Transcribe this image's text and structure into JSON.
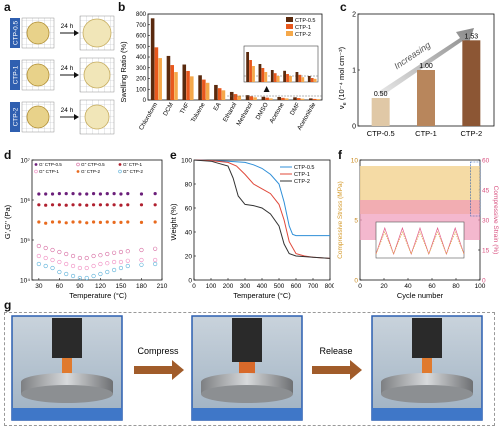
{
  "panel_labels": {
    "a": "a",
    "b": "b",
    "c": "c",
    "d": "d",
    "e": "e",
    "f": "f",
    "g": "g"
  },
  "colors": {
    "ctp05": "#5a2a0e",
    "ctp1": "#e8581d",
    "ctp2": "#f5a84a",
    "blue": "#2f6fc1",
    "pink": "#e25b8a",
    "gold": "#e0a640"
  },
  "panel_a": {
    "labels": [
      "CTP-0.5",
      "CTP-1",
      "CTP-2"
    ],
    "arrow_text": "24 h"
  },
  "panel_g": {
    "steps": [
      "Compress",
      "Release"
    ]
  },
  "chart_data": [
    {
      "id": "b",
      "type": "bar",
      "ylabel": "Swelling Ratio (%)",
      "ylim": [
        0,
        800
      ],
      "yticks": [
        0,
        100,
        200,
        300,
        400,
        500,
        600,
        700,
        800
      ],
      "categories": [
        "Chloroform",
        "DCM",
        "THF",
        "Toluene",
        "EA",
        "Ethanol",
        "Methanol",
        "DMSO",
        "Acetone",
        "DMF",
        "Acetonitrile"
      ],
      "series": [
        {
          "name": "CTP-0.5",
          "values": [
            760,
            410,
            330,
            230,
            140,
            75,
            45,
            30,
            28,
            25,
            15
          ]
        },
        {
          "name": "CTP-1",
          "values": [
            490,
            325,
            270,
            190,
            110,
            55,
            35,
            22,
            20,
            18,
            10
          ]
        },
        {
          "name": "CTP-2",
          "values": [
            390,
            260,
            220,
            160,
            90,
            40,
            25,
            15,
            15,
            12,
            8
          ]
        }
      ],
      "legend": "top-right",
      "inset": "zoom of Ethanol–Acetonitrile"
    },
    {
      "id": "c",
      "type": "bar",
      "ylabel": "ν",
      "ylabel_sub": "e",
      "ylabel_unit": "(10⁻⁴ mol cm⁻³)",
      "ylim": [
        0,
        2.0
      ],
      "yticks": [
        0,
        1,
        2
      ],
      "categories": [
        "CTP-0.5",
        "CTP-1",
        "CTP-2"
      ],
      "values": [
        0.5,
        1.0,
        1.53
      ],
      "labels": [
        "0.50",
        "1.00",
        "1.53"
      ],
      "annotation": "Increasing"
    },
    {
      "id": "d",
      "type": "scatter",
      "xlabel": "Temperature (°C)",
      "ylabel": "G',G'' (Pa)",
      "ylog": true,
      "ylim": [
        10000,
        10000000
      ],
      "yticks_labels": [
        "10⁴",
        "10⁵",
        "10⁶",
        "10⁷"
      ],
      "xlim": [
        20,
        210
      ],
      "xticks": [
        30,
        60,
        90,
        120,
        150,
        180,
        210
      ],
      "series": [
        {
          "name": "G' CTP-0.5",
          "marker": "filled",
          "values_log": [
            6.15,
            6.15,
            6.15,
            6.16,
            6.16,
            6.16,
            6.15,
            6.15,
            6.16,
            6.15,
            6.16,
            6.16,
            6.15,
            6.16,
            6.15,
            6.16
          ]
        },
        {
          "name": "G'' CTP-0.5",
          "marker": "open",
          "values_log": [
            4.85,
            4.8,
            4.75,
            4.7,
            4.65,
            4.6,
            4.55,
            4.55,
            4.6,
            4.62,
            4.65,
            4.68,
            4.7,
            4.72,
            4.75,
            4.78
          ]
        },
        {
          "name": "G' CTP-1",
          "marker": "filled",
          "values_log": [
            5.88,
            5.87,
            5.88,
            5.88,
            5.87,
            5.88,
            5.88,
            5.87,
            5.88,
            5.88,
            5.88,
            5.88,
            5.87,
            5.88,
            5.88,
            5.88
          ]
        },
        {
          "name": "G'' CTP-1",
          "marker": "open",
          "values_log": [
            4.6,
            4.55,
            4.5,
            4.45,
            4.4,
            4.35,
            4.3,
            4.3,
            4.35,
            4.4,
            4.42,
            4.45,
            4.45,
            4.48,
            4.5,
            4.5
          ]
        },
        {
          "name": "G' CTP-2",
          "marker": "filled",
          "values_log": [
            5.45,
            5.42,
            5.45,
            5.45,
            5.43,
            5.45,
            5.45,
            5.43,
            5.45,
            5.44,
            5.45,
            5.44,
            5.44,
            5.45,
            5.44,
            5.45
          ]
        },
        {
          "name": "G'' CTP-2",
          "marker": "open",
          "values_log": [
            4.4,
            4.35,
            4.3,
            4.2,
            4.15,
            4.1,
            4.05,
            4.05,
            4.1,
            4.15,
            4.2,
            4.25,
            4.3,
            4.35,
            4.38,
            4.4
          ]
        }
      ],
      "x": [
        30,
        40,
        50,
        60,
        70,
        80,
        90,
        100,
        110,
        120,
        130,
        140,
        150,
        160,
        180,
        200
      ]
    },
    {
      "id": "e",
      "type": "line",
      "xlabel": "Temperature (°C)",
      "ylabel": "Weight (%)",
      "xlim": [
        0,
        800
      ],
      "ylim": [
        0,
        100
      ],
      "xticks": [
        0,
        100,
        200,
        300,
        400,
        500,
        600,
        700,
        800
      ],
      "yticks": [
        0,
        20,
        40,
        60,
        80,
        100
      ],
      "series": [
        {
          "name": "CTP-0.5",
          "x": [
            0,
            100,
            200,
            300,
            350,
            400,
            450,
            500,
            530,
            560,
            580,
            600,
            650,
            700,
            800
          ],
          "y": [
            100,
            99.5,
            99,
            98,
            96,
            93,
            88,
            80,
            65,
            45,
            38,
            37,
            37,
            37,
            37
          ]
        },
        {
          "name": "CTP-1",
          "x": [
            0,
            100,
            200,
            250,
            300,
            350,
            400,
            450,
            500,
            530,
            560,
            600,
            650,
            700,
            800
          ],
          "y": [
            100,
            99.5,
            98,
            95,
            88,
            80,
            76,
            72,
            63,
            50,
            32,
            22,
            20,
            19,
            18
          ]
        },
        {
          "name": "CTP-2",
          "x": [
            0,
            100,
            200,
            230,
            260,
            300,
            350,
            400,
            450,
            500,
            530,
            560,
            600,
            700,
            800
          ],
          "y": [
            100,
            99,
            95,
            85,
            70,
            63,
            62,
            60,
            55,
            45,
            30,
            22,
            20,
            19,
            18
          ]
        }
      ],
      "legend": "top-right"
    },
    {
      "id": "f",
      "type": "line",
      "xlabel": "Cycle number",
      "ylabel_left": "Compressive Stress (MPa)",
      "ylabel_right": "Compressive Strain (%)",
      "xlim": [
        0,
        100
      ],
      "xticks": [
        0,
        20,
        40,
        60,
        80,
        100
      ],
      "ylim_left": [
        0,
        10
      ],
      "yticks_left": [
        0,
        5,
        10
      ],
      "ylim_right": [
        0,
        60
      ],
      "yticks_right": [
        0,
        15,
        30,
        45,
        60
      ],
      "stress_band": [
        5.5,
        9.5
      ],
      "strain_band": [
        20,
        40
      ]
    }
  ]
}
